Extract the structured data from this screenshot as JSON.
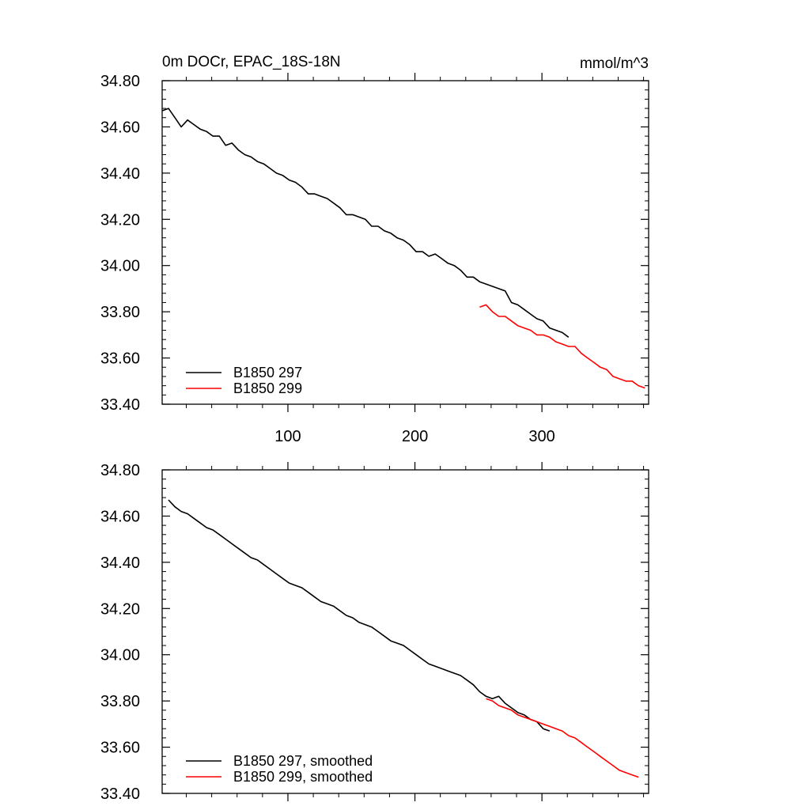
{
  "chart_data": [
    {
      "type": "line",
      "title": "0m DOCr, EPAC_18S-18N",
      "units": "mmol/m^3",
      "xlabel": "",
      "ylabel": "",
      "xlim": [
        1,
        384
      ],
      "ylim": [
        33.4,
        34.8
      ],
      "xticks": [
        100,
        200,
        300
      ],
      "xtick_labels": [
        "100",
        "200",
        "300"
      ],
      "yticks": [
        33.4,
        33.6,
        33.8,
        34.0,
        34.2,
        34.4,
        34.6,
        34.8
      ],
      "ytick_labels": [
        "33.40",
        "33.60",
        "33.80",
        "34.00",
        "34.20",
        "34.40",
        "34.60",
        "34.80"
      ],
      "grid": false,
      "legend_position": "bottom-left",
      "series": [
        {
          "name": "B1850 297",
          "label": "B1850 297",
          "color": "#000000",
          "x_start": 1,
          "x_step": 5,
          "values": [
            34.67,
            34.68,
            34.64,
            34.6,
            34.63,
            34.61,
            34.59,
            34.58,
            34.56,
            34.56,
            34.52,
            34.53,
            34.5,
            34.48,
            34.47,
            34.45,
            34.44,
            34.42,
            34.4,
            34.39,
            34.37,
            34.36,
            34.34,
            34.31,
            34.31,
            34.3,
            34.29,
            34.27,
            34.25,
            34.22,
            34.22,
            34.21,
            34.2,
            34.17,
            34.17,
            34.15,
            34.14,
            34.12,
            34.11,
            34.09,
            34.06,
            34.06,
            34.04,
            34.05,
            34.03,
            34.01,
            34.0,
            33.98,
            33.95,
            33.95,
            33.93,
            33.92,
            33.91,
            33.9,
            33.89,
            33.84,
            33.83,
            33.81,
            33.79,
            33.77,
            33.76,
            33.73,
            33.72,
            33.71,
            33.69
          ]
        },
        {
          "name": "B1850 299",
          "label": "B1850 299",
          "color": "#ff0000",
          "x_start": 251,
          "x_step": 5,
          "values": [
            33.82,
            33.83,
            33.8,
            33.78,
            33.78,
            33.76,
            33.74,
            33.73,
            33.72,
            33.7,
            33.7,
            33.69,
            33.67,
            33.66,
            33.65,
            33.65,
            33.62,
            33.6,
            33.58,
            33.56,
            33.55,
            33.52,
            33.51,
            33.5,
            33.5,
            33.48,
            33.47
          ]
        }
      ]
    },
    {
      "type": "line",
      "title": "",
      "xlabel": "",
      "ylabel": "",
      "xlim": [
        1,
        384
      ],
      "ylim": [
        33.4,
        34.8
      ],
      "xticks": [
        100,
        200,
        300
      ],
      "yticks": [
        33.4,
        33.6,
        33.8,
        34.0,
        34.2,
        34.4,
        34.6,
        34.8
      ],
      "ytick_labels": [
        "33.40",
        "33.60",
        "33.80",
        "34.00",
        "34.20",
        "34.40",
        "34.60",
        "34.80"
      ],
      "grid": false,
      "legend_position": "bottom-left",
      "series": [
        {
          "name": "B1850 297, smoothed",
          "label": "B1850 297, smoothed",
          "color": "#000000",
          "x_start": 6,
          "x_step": 5,
          "values": [
            34.67,
            34.64,
            34.62,
            34.61,
            34.59,
            34.57,
            34.55,
            34.54,
            34.52,
            34.5,
            34.48,
            34.46,
            34.44,
            34.42,
            34.41,
            34.39,
            34.37,
            34.35,
            34.33,
            34.31,
            34.3,
            34.29,
            34.27,
            34.25,
            34.23,
            34.22,
            34.21,
            34.19,
            34.17,
            34.16,
            34.14,
            34.13,
            34.12,
            34.1,
            34.08,
            34.06,
            34.05,
            34.04,
            34.02,
            34.0,
            33.98,
            33.96,
            33.95,
            33.94,
            33.93,
            33.92,
            33.91,
            33.89,
            33.87,
            33.84,
            33.82,
            33.81,
            33.82,
            33.79,
            33.77,
            33.75,
            33.74,
            33.72,
            33.71,
            33.68,
            33.67
          ]
        },
        {
          "name": "B1850 299, smoothed",
          "label": "B1850 299, smoothed",
          "color": "#ff0000",
          "x_start": 256,
          "x_step": 5,
          "values": [
            33.81,
            33.8,
            33.78,
            33.77,
            33.76,
            33.74,
            33.73,
            33.72,
            33.71,
            33.7,
            33.69,
            33.68,
            33.67,
            33.65,
            33.64,
            33.62,
            33.6,
            33.58,
            33.56,
            33.54,
            33.52,
            33.5,
            33.49,
            33.48,
            33.47
          ]
        }
      ]
    }
  ]
}
